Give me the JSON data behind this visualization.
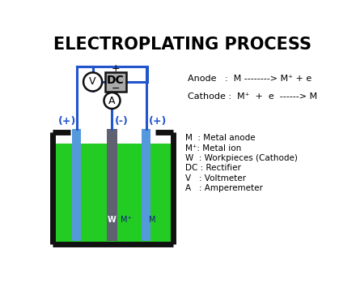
{
  "title": "ELECTROPLATING PROCESS",
  "title_fontsize": 15,
  "title_fontweight": "bold",
  "bg_color": "#ffffff",
  "tank_color": "#111111",
  "liquid_color": "#22cc22",
  "anode_color": "#5599dd",
  "cathode_color": "#5f6070",
  "wire_color": "#2255cc",
  "dc_box_fill": "#aaaaaa",
  "legend_lines": [
    "M  : Metal anode",
    "M⁺: Metal ion",
    "W  : Workpieces (Cathode)",
    "DC : Rectifier",
    "V   : Voltmeter",
    "A   : Amperemeter"
  ],
  "anode_eq": "Anode   :  M --------> M⁺ + e",
  "cathode_eq": "Cathode :  M⁺  +  e  ------> M"
}
